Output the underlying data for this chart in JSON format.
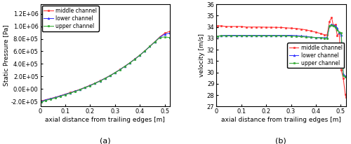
{
  "fig_width": 5.0,
  "fig_height": 2.06,
  "dpi": 100,
  "background_color": "#ffffff",
  "plot_a": {
    "xlabel": "axial distance from trailing edges [m]",
    "ylabel": "Static Pressure [Pa]",
    "label_a": "(a)",
    "xlim": [
      0,
      0.52
    ],
    "ylim": [
      -280000.0,
      1350000.0
    ],
    "yticks": [
      -200000.0,
      0.0,
      200000.0,
      400000.0,
      600000.0,
      800000.0,
      1000000.0,
      1200000.0
    ],
    "ytick_labels": [
      "-2.0E+05",
      "0.0E+00",
      "2.0E+05",
      "4.0E+05",
      "6.0E+05",
      "8.0E+05",
      "1.0E+06",
      "1.2E+06"
    ],
    "xticks": [
      0,
      0.1,
      0.2,
      0.3,
      0.4,
      0.5
    ],
    "xtick_labels": [
      "0",
      "0.1",
      "0.2",
      "0.3",
      "0.4",
      "0.5"
    ],
    "series_order": [
      "middle",
      "lower",
      "upper"
    ],
    "series": {
      "middle": {
        "color": "#ff3333",
        "marker": "s",
        "label": "middle channel",
        "x": [
          0.005,
          0.02,
          0.04,
          0.06,
          0.08,
          0.1,
          0.12,
          0.14,
          0.16,
          0.18,
          0.2,
          0.22,
          0.24,
          0.26,
          0.28,
          0.3,
          0.32,
          0.34,
          0.36,
          0.38,
          0.4,
          0.42,
          0.44,
          0.46,
          0.48,
          0.5,
          0.52
        ],
        "y": [
          -190000.0,
          -172000.0,
          -152000.0,
          -132000.0,
          -107000.0,
          -82000.0,
          -57000.0,
          -32000.0,
          -4000.0,
          28000.0,
          60000.0,
          95000.0,
          132000.0,
          172000.0,
          215000.0,
          262000.0,
          312000.0,
          365000.0,
          420000.0,
          480000.0,
          542000.0,
          610000.0,
          682000.0,
          755000.0,
          830000.0,
          890000.0,
          920000.0
        ]
      },
      "lower": {
        "color": "#3333ff",
        "marker": "^",
        "label": "lower channel",
        "x": [
          0.005,
          0.02,
          0.04,
          0.06,
          0.08,
          0.1,
          0.12,
          0.14,
          0.16,
          0.18,
          0.2,
          0.22,
          0.24,
          0.26,
          0.28,
          0.3,
          0.32,
          0.34,
          0.36,
          0.38,
          0.4,
          0.42,
          0.44,
          0.46,
          0.48,
          0.5,
          0.52
        ],
        "y": [
          -195000.0,
          -175000.0,
          -155000.0,
          -135000.0,
          -110000.0,
          -85000.0,
          -60000.0,
          -35000.0,
          -7000.0,
          25000.0,
          57000.0,
          92000.0,
          130000.0,
          170000.0,
          213000.0,
          260000.0,
          310000.0,
          363000.0,
          418000.0,
          478000.0,
          540000.0,
          608000.0,
          680000.0,
          752000.0,
          825000.0,
          875000.0,
          890000.0
        ]
      },
      "upper": {
        "color": "#33aa33",
        "marker": "s",
        "label": "upper channel",
        "x": [
          0.005,
          0.02,
          0.04,
          0.06,
          0.08,
          0.1,
          0.12,
          0.14,
          0.16,
          0.18,
          0.2,
          0.22,
          0.24,
          0.26,
          0.28,
          0.3,
          0.32,
          0.34,
          0.36,
          0.38,
          0.4,
          0.42,
          0.44,
          0.46,
          0.48,
          0.5,
          0.52
        ],
        "y": [
          -205000.0,
          -185000.0,
          -163000.0,
          -142000.0,
          -117000.0,
          -92000.0,
          -66000.0,
          -39000.0,
          -10000.0,
          21000.0,
          53000.0,
          88000.0,
          127000.0,
          167000.0,
          210000.0,
          258000.0,
          308000.0,
          361000.0,
          416000.0,
          476000.0,
          538000.0,
          606000.0,
          678000.0,
          750000.0,
          820000.0,
          830000.0,
          820000.0
        ]
      }
    }
  },
  "plot_b": {
    "xlabel": "axial distance from trailing edges [m]",
    "ylabel": "velocity [m/s]",
    "label_b": "(b)",
    "xlim": [
      0,
      0.52
    ],
    "ylim": [
      27,
      36
    ],
    "yticks": [
      27,
      28,
      29,
      30,
      31,
      32,
      33,
      34,
      35,
      36
    ],
    "xticks": [
      0,
      0.1,
      0.2,
      0.3,
      0.4,
      0.5
    ],
    "xtick_labels": [
      "0",
      "0.1",
      "0.2",
      "0.3",
      "0.4",
      "0.5"
    ],
    "series_order": [
      "middle",
      "lower",
      "upper"
    ],
    "series": {
      "middle": {
        "color": "#ff3333",
        "marker": "s",
        "label": "middle channel",
        "x": [
          0.005,
          0.02,
          0.04,
          0.06,
          0.08,
          0.1,
          0.12,
          0.14,
          0.16,
          0.18,
          0.2,
          0.22,
          0.24,
          0.26,
          0.28,
          0.3,
          0.32,
          0.34,
          0.36,
          0.38,
          0.4,
          0.42,
          0.435,
          0.445,
          0.455,
          0.463,
          0.47,
          0.478,
          0.486,
          0.494,
          0.502,
          0.51,
          0.518,
          0.522
        ],
        "y": [
          34.1,
          34.1,
          34.05,
          34.05,
          34.05,
          34.05,
          34.0,
          34.0,
          34.0,
          34.0,
          33.98,
          33.98,
          33.97,
          33.96,
          33.93,
          33.9,
          33.87,
          33.82,
          33.75,
          33.65,
          33.55,
          33.42,
          33.32,
          33.3,
          34.5,
          34.85,
          34.15,
          34.2,
          33.25,
          33.5,
          30.2,
          29.5,
          28.1,
          27.8
        ]
      },
      "lower": {
        "color": "#3333ff",
        "marker": "^",
        "label": "lower channel",
        "x": [
          0.005,
          0.02,
          0.04,
          0.06,
          0.08,
          0.1,
          0.12,
          0.14,
          0.16,
          0.18,
          0.2,
          0.22,
          0.24,
          0.26,
          0.28,
          0.3,
          0.32,
          0.34,
          0.36,
          0.38,
          0.4,
          0.42,
          0.435,
          0.445,
          0.455,
          0.463,
          0.47,
          0.478,
          0.486,
          0.494,
          0.502,
          0.51,
          0.518
        ],
        "y": [
          33.2,
          33.25,
          33.27,
          33.27,
          33.27,
          33.27,
          33.27,
          33.27,
          33.27,
          33.27,
          33.27,
          33.27,
          33.27,
          33.27,
          33.27,
          33.27,
          33.25,
          33.22,
          33.18,
          33.12,
          33.08,
          33.07,
          33.05,
          33.08,
          34.1,
          34.25,
          34.15,
          34.1,
          33.9,
          33.5,
          33.3,
          29.85,
          29.7
        ]
      },
      "upper": {
        "color": "#33aa33",
        "marker": "s",
        "label": "upper channel",
        "x": [
          0.005,
          0.02,
          0.04,
          0.06,
          0.08,
          0.1,
          0.12,
          0.14,
          0.16,
          0.18,
          0.2,
          0.22,
          0.24,
          0.26,
          0.28,
          0.3,
          0.32,
          0.34,
          0.36,
          0.38,
          0.4,
          0.42,
          0.435,
          0.445,
          0.455,
          0.463,
          0.47,
          0.478,
          0.486,
          0.494,
          0.502,
          0.51,
          0.518
        ],
        "y": [
          33.2,
          33.22,
          33.22,
          33.22,
          33.22,
          33.22,
          33.22,
          33.22,
          33.22,
          33.22,
          33.22,
          33.22,
          33.22,
          33.22,
          33.22,
          33.2,
          33.18,
          33.15,
          33.12,
          33.1,
          33.06,
          33.04,
          33.02,
          33.02,
          34.1,
          34.18,
          34.1,
          33.95,
          33.75,
          33.55,
          33.5,
          29.75,
          29.6
        ]
      }
    }
  },
  "tick_fontsize": 6,
  "label_fontsize": 6.5,
  "legend_fontsize": 5.5,
  "marker_size": 2.0,
  "line_width": 0.75
}
